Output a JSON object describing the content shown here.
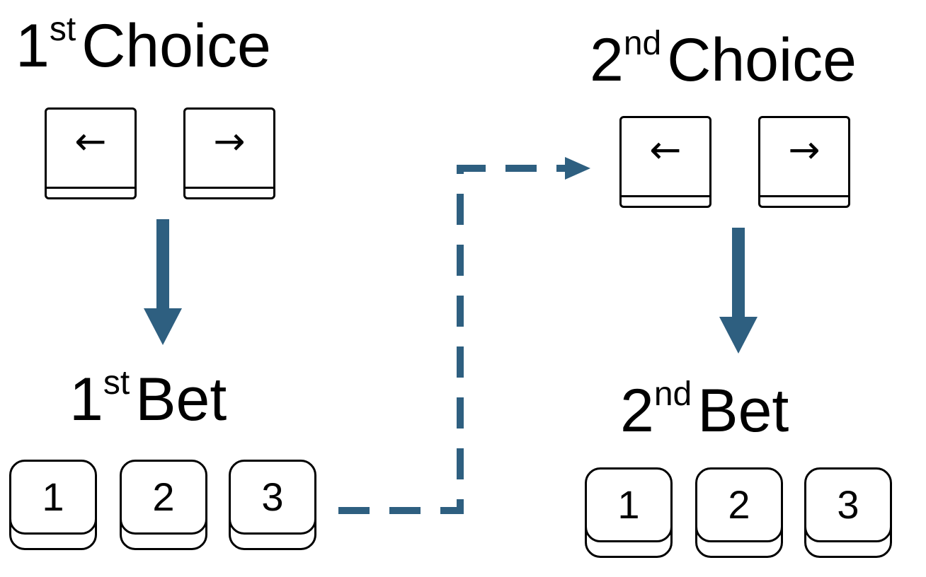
{
  "choice1": {
    "number": "1",
    "suffix": "st",
    "word": "Choice",
    "keys": [
      {
        "glyph": "←",
        "icon": "left-arrow-icon"
      },
      {
        "glyph": "→",
        "icon": "right-arrow-icon"
      }
    ]
  },
  "choice2": {
    "number": "2",
    "suffix": "nd",
    "word": "Choice",
    "keys": [
      {
        "glyph": "←",
        "icon": "left-arrow-icon"
      },
      {
        "glyph": "→",
        "icon": "right-arrow-icon"
      }
    ]
  },
  "bet1": {
    "number": "1",
    "suffix": "st",
    "word": "Bet",
    "keys": [
      "1",
      "2",
      "3"
    ]
  },
  "bet2": {
    "number": "2",
    "suffix": "nd",
    "word": "Bet",
    "keys": [
      "1",
      "2",
      "3"
    ]
  },
  "colors": {
    "arrow": "#2e5f80",
    "key_border": "#000000",
    "background": "#ffffff"
  }
}
